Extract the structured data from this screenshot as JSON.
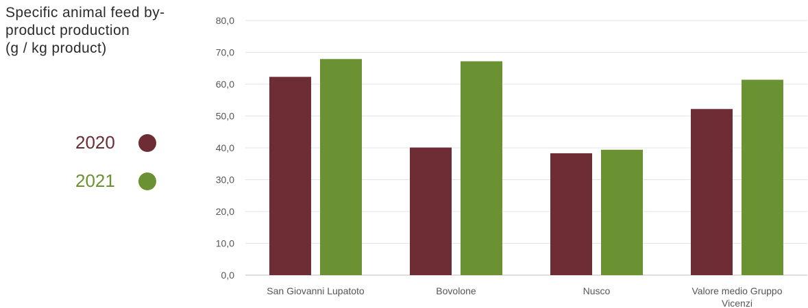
{
  "chart_data": {
    "type": "bar",
    "title": "Specific animal feed by-\nproduct production\n(g / kg product)",
    "categories": [
      "San Giovanni Lupatoto",
      "Bovolone",
      "Nusco",
      "Valore medio Gruppo Vicenzi"
    ],
    "series": [
      {
        "name": "2020",
        "color": "#6e2c34",
        "values": [
          62.3,
          40.1,
          38.3,
          52.2
        ]
      },
      {
        "name": "2021",
        "color": "#6a9232",
        "values": [
          67.9,
          67.2,
          39.4,
          61.4
        ]
      }
    ],
    "ylim": [
      0,
      80
    ],
    "yticks": [
      "0,0",
      "10,0",
      "20,0",
      "30,0",
      "40,0",
      "50,0",
      "60,0",
      "70,0",
      "80,0"
    ],
    "grid": true,
    "legend_position": "left"
  }
}
